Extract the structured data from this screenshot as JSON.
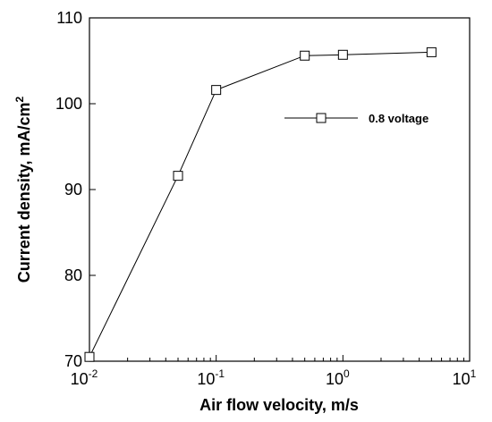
{
  "chart_data": {
    "type": "line",
    "xscale": "log",
    "xlim": [
      0.01,
      10
    ],
    "ylim": [
      70,
      110
    ],
    "x_ticks": [
      {
        "value": 0.01,
        "base": "10",
        "exp": "-2"
      },
      {
        "value": 0.1,
        "base": "10",
        "exp": "-1"
      },
      {
        "value": 1,
        "base": "10",
        "exp": "0"
      },
      {
        "value": 10,
        "base": "10",
        "exp": "1"
      }
    ],
    "y_ticks": [
      "70",
      "80",
      "90",
      "100",
      "110"
    ],
    "xlabel": "Air flow velocity, m/s",
    "ylabel_main": "Current density, mA/cm",
    "ylabel_sup": "2",
    "grid": false,
    "legend_position": "upper-right",
    "marker": "hollow-square",
    "line_color": "#000000",
    "series": [
      {
        "name": "0.8 voltage",
        "x": [
          0.01,
          0.05,
          0.1,
          0.5,
          1,
          5
        ],
        "y": [
          70.5,
          91.6,
          101.6,
          105.6,
          105.7,
          106.0
        ]
      }
    ]
  }
}
